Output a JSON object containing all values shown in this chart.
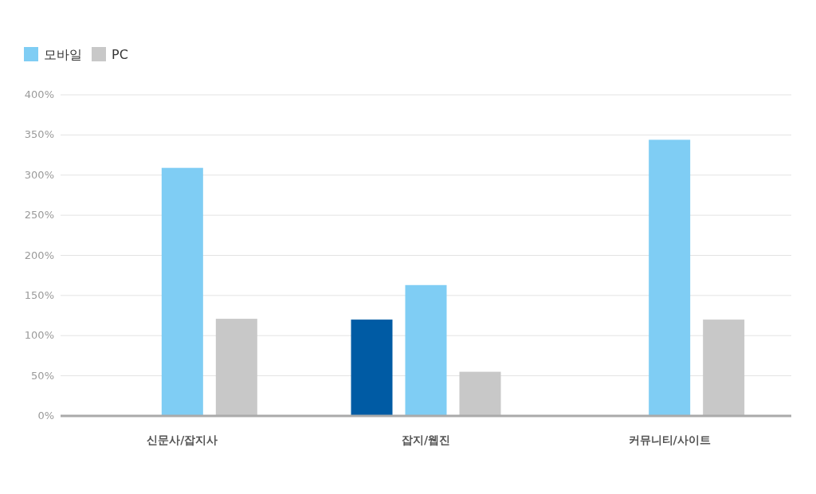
{
  "chart_data": {
    "type": "bar",
    "categories": [
      "신문사/잡지사",
      "잡지/웹진",
      "커뮤니티/사이트"
    ],
    "series": [
      {
        "color": "#005ba4",
        "values": [
          null,
          120,
          null
        ]
      },
      {
        "name": "모바일",
        "color": "#7fcdf4",
        "values": [
          309,
          163,
          344
        ]
      },
      {
        "name": "PC",
        "color": "#c8c8c8",
        "values": [
          121,
          55,
          120
        ]
      }
    ],
    "ylim": [
      0,
      400
    ],
    "yticks": [
      {
        "value": 0,
        "label": "0%"
      },
      {
        "value": 50,
        "label": "50%"
      },
      {
        "value": 100,
        "label": "100%"
      },
      {
        "value": 150,
        "label": "150%"
      },
      {
        "value": 200,
        "label": "200%"
      },
      {
        "value": 250,
        "label": "250%"
      },
      {
        "value": 300,
        "label": "300%"
      },
      {
        "value": 350,
        "label": "350%"
      },
      {
        "value": 400,
        "label": "400%"
      }
    ],
    "grid": "y",
    "legend": "top left"
  }
}
